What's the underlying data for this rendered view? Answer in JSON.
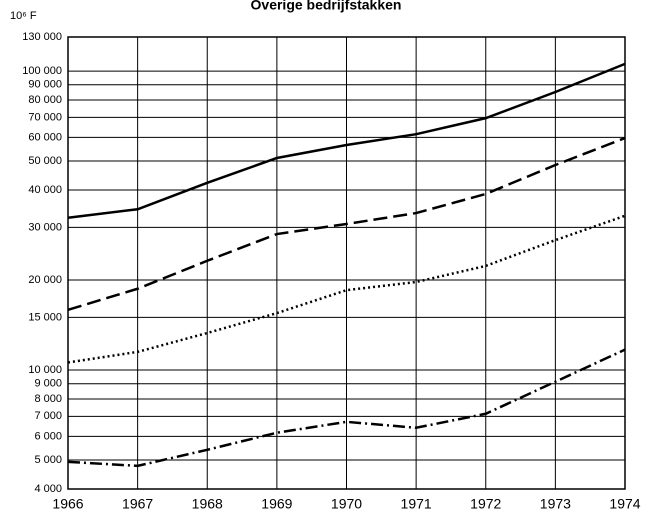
{
  "chart_data": {
    "type": "line",
    "title": "Overige bedrijfstakken",
    "ylabel": "10⁶ F",
    "x": [
      1966,
      1967,
      1968,
      1969,
      1970,
      1971,
      1972,
      1973,
      1974
    ],
    "xlim": [
      1966,
      1974
    ],
    "xticks": [
      1966,
      1967,
      1968,
      1969,
      1970,
      1971,
      1972,
      1973,
      1974
    ],
    "ylim": [
      4000,
      130000
    ],
    "log_scale": true,
    "grid": true,
    "yticks": [
      {
        "value": 4000,
        "label": "4 000"
      },
      {
        "value": 5000,
        "label": "5 000"
      },
      {
        "value": 6000,
        "label": "6 000"
      },
      {
        "value": 7000,
        "label": "7 000"
      },
      {
        "value": 8000,
        "label": "8 000"
      },
      {
        "value": 9000,
        "label": "9 000"
      },
      {
        "value": 10000,
        "label": "10 000"
      },
      {
        "value": 15000,
        "label": "15 000"
      },
      {
        "value": 20000,
        "label": "20 000"
      },
      {
        "value": 30000,
        "label": "30 000"
      },
      {
        "value": 40000,
        "label": "40 000"
      },
      {
        "value": 50000,
        "label": "50 000"
      },
      {
        "value": 60000,
        "label": "60 000"
      },
      {
        "value": 70000,
        "label": "70 000"
      },
      {
        "value": 80000,
        "label": "80 000"
      },
      {
        "value": 90000,
        "label": "90 000"
      },
      {
        "value": 100000,
        "label": "100 000"
      },
      {
        "value": 130000,
        "label": "130 000"
      }
    ],
    "series": [
      {
        "color": "#000000",
        "dash": "solid",
        "values": [
          32300,
          34500,
          42300,
          51200,
          56600,
          61500,
          69600,
          85100,
          105700
        ]
      },
      {
        "color": "#000000",
        "dash": "dashed",
        "values": [
          15900,
          18700,
          23200,
          28500,
          30800,
          33500,
          38800,
          48500,
          59700
        ]
      },
      {
        "color": "#000000",
        "dash": "dotted",
        "values": [
          10600,
          11500,
          13300,
          15500,
          18500,
          19700,
          22300,
          27200,
          32800
        ]
      },
      {
        "color": "#000000",
        "dash": "dashdot",
        "values": [
          4930,
          4780,
          5410,
          6170,
          6710,
          6410,
          7140,
          9140,
          11700
        ]
      }
    ]
  }
}
